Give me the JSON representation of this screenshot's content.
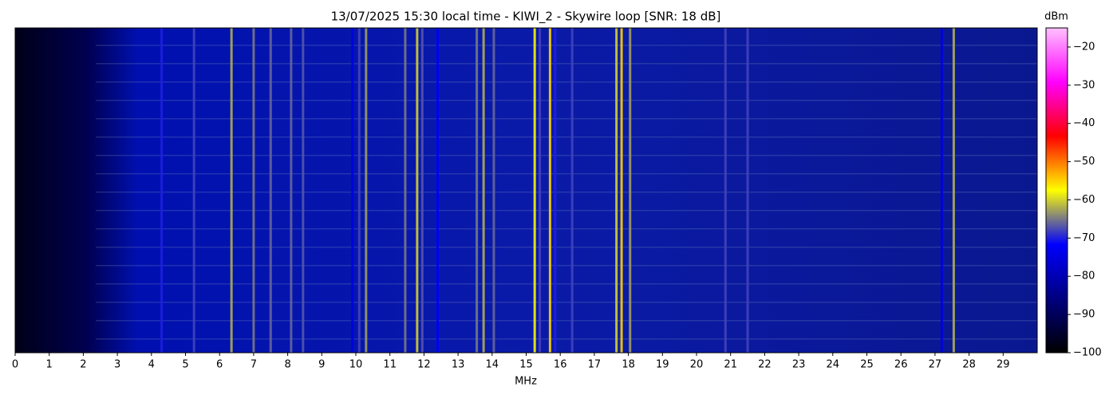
{
  "chart_data": {
    "type": "waterfall",
    "title": "13/07/2025 15:30 local time - KIWI_2 - Skywire loop [SNR: 18 dB]",
    "xlabel": "MHz",
    "xlim": [
      0,
      30
    ],
    "xticks": [
      0,
      1,
      2,
      3,
      4,
      5,
      6,
      7,
      8,
      9,
      10,
      11,
      12,
      13,
      14,
      15,
      16,
      17,
      18,
      19,
      20,
      21,
      22,
      23,
      24,
      25,
      26,
      27,
      28,
      29
    ],
    "colorbar_label": "dBm",
    "zlim": [
      -100,
      -15
    ],
    "zticks": [
      {
        "value": -20,
        "label": "−20"
      },
      {
        "value": -30,
        "label": "−30"
      },
      {
        "value": -40,
        "label": "−40"
      },
      {
        "value": -50,
        "label": "−50"
      },
      {
        "value": -60,
        "label": "−60"
      },
      {
        "value": -70,
        "label": "−70"
      },
      {
        "value": -80,
        "label": "−80"
      },
      {
        "value": -90,
        "label": "−90"
      },
      {
        "value": -100,
        "label": "−100"
      }
    ],
    "colormap": [
      "#000000",
      "#000080",
      "#0000ff",
      "#ffff00",
      "#ff0000",
      "#ff00ff",
      "#ffc0ff"
    ],
    "x": [
      4.3,
      5.25,
      6.35,
      7.0,
      7.5,
      8.1,
      8.45,
      9.9,
      10.1,
      10.3,
      11.45,
      11.8,
      11.95,
      12.4,
      13.55,
      13.75,
      14.05,
      15.25,
      15.4,
      15.7,
      15.85,
      16.35,
      17.65,
      17.8,
      18.05,
      20.85,
      21.5,
      27.2,
      27.55
    ],
    "values": [
      -70,
      -68,
      -62,
      -65,
      -66,
      -66,
      -67,
      -75,
      -68,
      -63,
      -65,
      -60,
      -67,
      -72,
      -65,
      -62,
      -66,
      -58,
      -68,
      -55,
      -70,
      -68,
      -60,
      -55,
      -63,
      -68,
      -68,
      -75,
      -62
    ]
  }
}
